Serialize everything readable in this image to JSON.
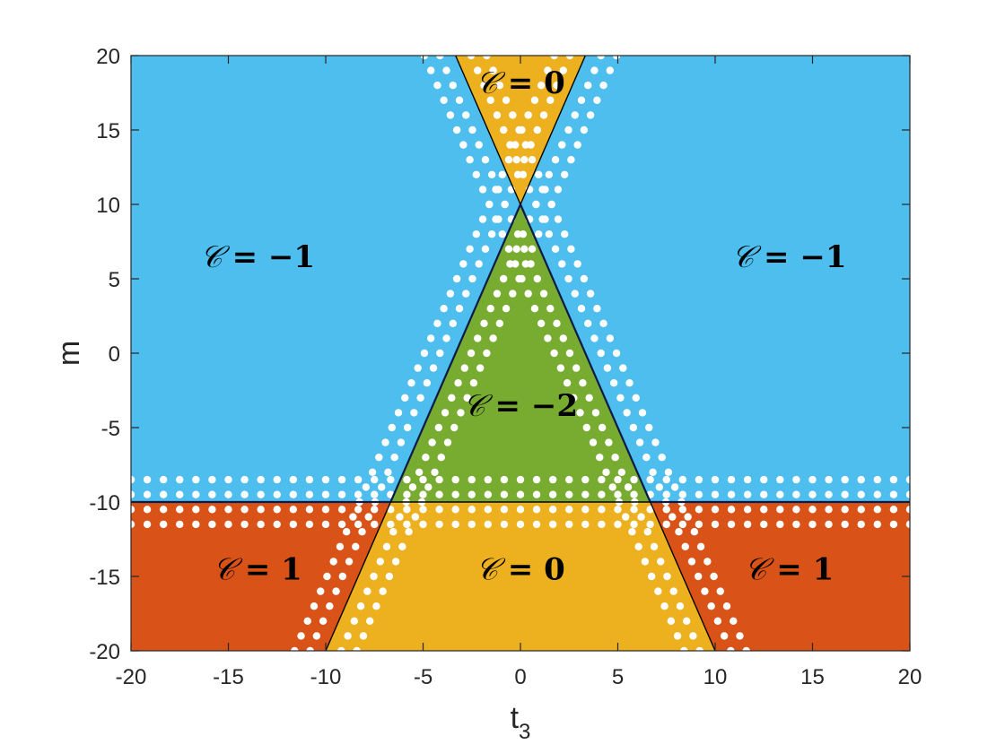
{
  "chart_data": {
    "type": "phase-diagram",
    "xlabel": "t",
    "xlabel_subscript": "3",
    "ylabel": "m",
    "xlim": [
      -20,
      20
    ],
    "ylim": [
      -20,
      20
    ],
    "xticks": [
      -20,
      -15,
      -10,
      -5,
      0,
      5,
      10,
      15,
      20
    ],
    "yticks": [
      -20,
      -15,
      -10,
      -5,
      0,
      5,
      10,
      15,
      20
    ],
    "colors": {
      "C=-1": "#4DBEEE",
      "C=-2": "#77AC30",
      "C=0": "#EDB120",
      "C=1": "#D95319",
      "boundary_dark": "#0A1A4A",
      "boundary_light": "#000000",
      "dots": "#ffffff"
    },
    "regions": [
      {
        "label": "C=-1",
        "text_symbol": "𝒞",
        "text_value": "= −1",
        "at": [
          -13.5,
          6.5
        ],
        "color_key": "C=-1"
      },
      {
        "label": "C=-1",
        "text_symbol": "𝒞",
        "text_value": "= −1",
        "at": [
          13.8,
          6.5
        ],
        "color_key": "C=-1"
      },
      {
        "label": "C=0",
        "text_symbol": "𝒞",
        "text_value": "= 0",
        "at": [
          0,
          18.2
        ],
        "color_key": "C=0"
      },
      {
        "label": "C=-2",
        "text_symbol": "𝒞",
        "text_value": "= −2",
        "at": [
          0,
          -3.5
        ],
        "color_key": "C=-2"
      },
      {
        "label": "C=1",
        "text_symbol": "𝒞",
        "text_value": "= 1",
        "at": [
          -13.5,
          -14.5
        ],
        "color_key": "C=1"
      },
      {
        "label": "C=0",
        "text_symbol": "𝒞",
        "text_value": "= 0",
        "at": [
          0,
          -14.5
        ],
        "color_key": "C=0"
      },
      {
        "label": "C=1",
        "text_symbol": "𝒞",
        "text_value": "= 1",
        "at": [
          13.8,
          -14.5
        ],
        "color_key": "C=1"
      }
    ],
    "boundaries": [
      {
        "name": "line m = 10 - 3 t3",
        "x": [
          -3.333,
          10
        ],
        "y": [
          20,
          -20
        ]
      },
      {
        "name": "line m = 10 + 3 t3",
        "x": [
          3.333,
          -10
        ],
        "y": [
          20,
          -20
        ]
      },
      {
        "name": "line m = -10",
        "x": [
          -20,
          20
        ],
        "y": [
          -10,
          -10
        ]
      }
    ],
    "dot_rows_near_m_minus10": [
      -8.5,
      -9.5,
      -10.5,
      -11.5
    ],
    "dot_offsets_t3_near_lines": [
      -1.6,
      -0.8,
      0.8,
      1.6
    ]
  }
}
